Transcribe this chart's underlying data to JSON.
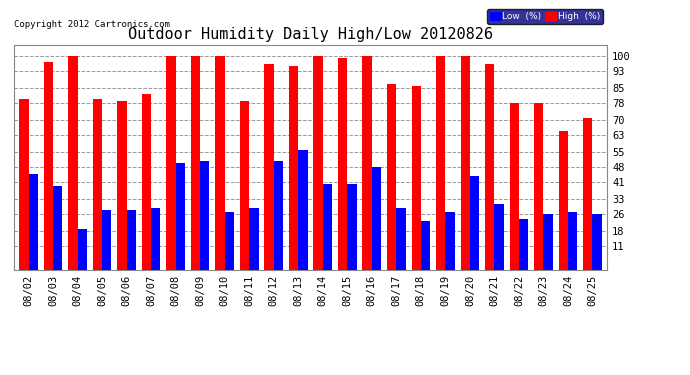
{
  "title": "Outdoor Humidity Daily High/Low 20120826",
  "copyright": "Copyright 2012 Cartronics.com",
  "dates": [
    "08/02",
    "08/03",
    "08/04",
    "08/05",
    "08/06",
    "08/07",
    "08/08",
    "08/09",
    "08/10",
    "08/11",
    "08/12",
    "08/13",
    "08/14",
    "08/15",
    "08/16",
    "08/17",
    "08/18",
    "08/19",
    "08/20",
    "08/21",
    "08/22",
    "08/23",
    "08/24",
    "08/25"
  ],
  "high": [
    80,
    97,
    100,
    80,
    79,
    82,
    100,
    100,
    100,
    79,
    96,
    95,
    100,
    99,
    100,
    87,
    86,
    100,
    100,
    96,
    78,
    78,
    65,
    71
  ],
  "low": [
    45,
    39,
    19,
    28,
    28,
    29,
    50,
    51,
    27,
    29,
    51,
    56,
    40,
    40,
    48,
    29,
    23,
    27,
    44,
    31,
    24,
    26,
    27,
    26
  ],
  "high_color": "#ff0000",
  "low_color": "#0000ff",
  "bg_color": "#ffffff",
  "grid_color": "#999999",
  "yticks": [
    11,
    18,
    26,
    33,
    41,
    48,
    55,
    63,
    70,
    78,
    85,
    93,
    100
  ],
  "ylim": [
    0,
    105
  ],
  "bar_width": 0.38,
  "title_fontsize": 11,
  "tick_fontsize": 7.5,
  "copyright_fontsize": 6.5
}
